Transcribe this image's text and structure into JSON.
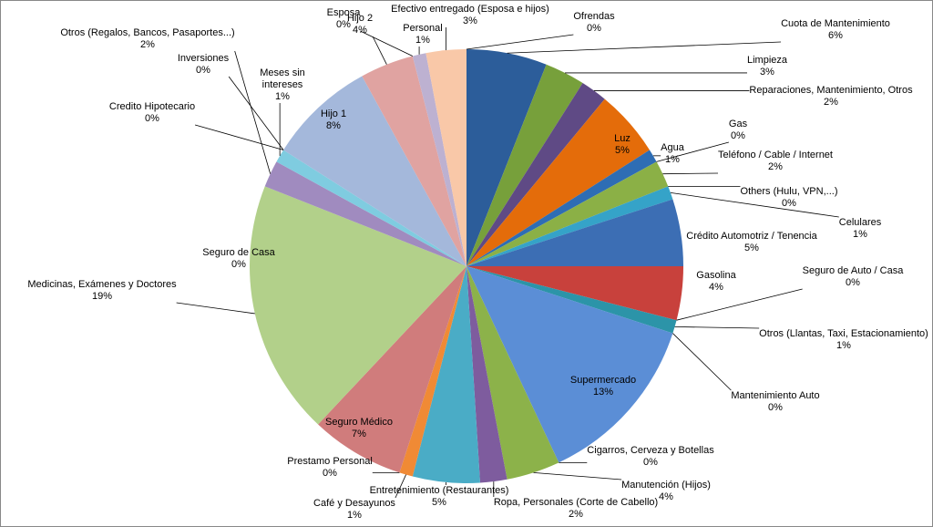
{
  "chart_data": {
    "type": "pie",
    "categories": [
      "Ofrendas",
      "Cuota de Mantenimiento",
      "Limpieza",
      "Reparaciones, Mantenimiento, Otros",
      "Luz",
      "Agua",
      "Gas",
      "Teléfono / Cable / Internet",
      "Others (Hulu, VPN,...)",
      "Celulares",
      "Crédito Automotriz / Tenencia",
      "Gasolina",
      "Seguro de Auto / Casa",
      "Otros (Llantas, Taxi, Estacionamiento)",
      "Mantenimiento Auto",
      "Supermercado",
      "Cigarros, Cerveza y Botellas",
      "Manutención (Hijos)",
      "Ropa, Personales (Corte de Cabello)",
      "Entretenimiento (Restaurantes)",
      "Café y Desayunos",
      "Prestamo Personal",
      "Seguro Médico",
      "Seguro de Casa",
      "Medicinas, Exámenes y Doctores",
      "Otros (Regalos, Bancos, Pasaportes...)",
      "Meses sin intereses",
      "Credito Hipotecario",
      "Inversiones",
      "Hijo 1",
      "Hijo 2",
      "Esposa",
      "Personal",
      "Efectivo entregado (Esposa e hijos)"
    ],
    "values": [
      0,
      6,
      3,
      2,
      5,
      1,
      0,
      2,
      0,
      1,
      5,
      4,
      0,
      1,
      0,
      13,
      0,
      4,
      2,
      5,
      1,
      0,
      7,
      0,
      19,
      2,
      1,
      0,
      0,
      8,
      4,
      0,
      1,
      3
    ],
    "value_labels": [
      "0%",
      "6%",
      "3%",
      "2%",
      "5%",
      "1%",
      "0%",
      "2%",
      "0%",
      "1%",
      "5%",
      "4%",
      "0%",
      "1%",
      "0%",
      "13%",
      "0%",
      "4%",
      "2%",
      "5%",
      "1%",
      "0%",
      "7%",
      "0%",
      "19%",
      "2%",
      "1%",
      "0%",
      "0%",
      "8%",
      "4%",
      "0%",
      "1%",
      "3%"
    ],
    "colors": [
      "#76923C",
      "#2C5D9A",
      "#77A03B",
      "#5F4A85",
      "#E46C0A",
      "#2E6DB4",
      "#A03C3A",
      "#8BB046",
      "#7B5DA0",
      "#35A3C8",
      "#3C6EB4",
      "#C8413C",
      "#8FB24E",
      "#2C94A8",
      "#E17A2E",
      "#5B8ED6",
      "#C9504C",
      "#8CB24A",
      "#7E5C9E",
      "#4AACC6",
      "#F08A35",
      "#6F8CC0",
      "#D07C7C",
      "#AEC98A",
      "#B2D08A",
      "#A08BBF",
      "#7FCCE0",
      "#F5B183",
      "#95B3D7",
      "#A4B8DB",
      "#E0A3A1",
      "#C6D8A6",
      "#BDB1D1",
      "#F9C8A8"
    ]
  }
}
